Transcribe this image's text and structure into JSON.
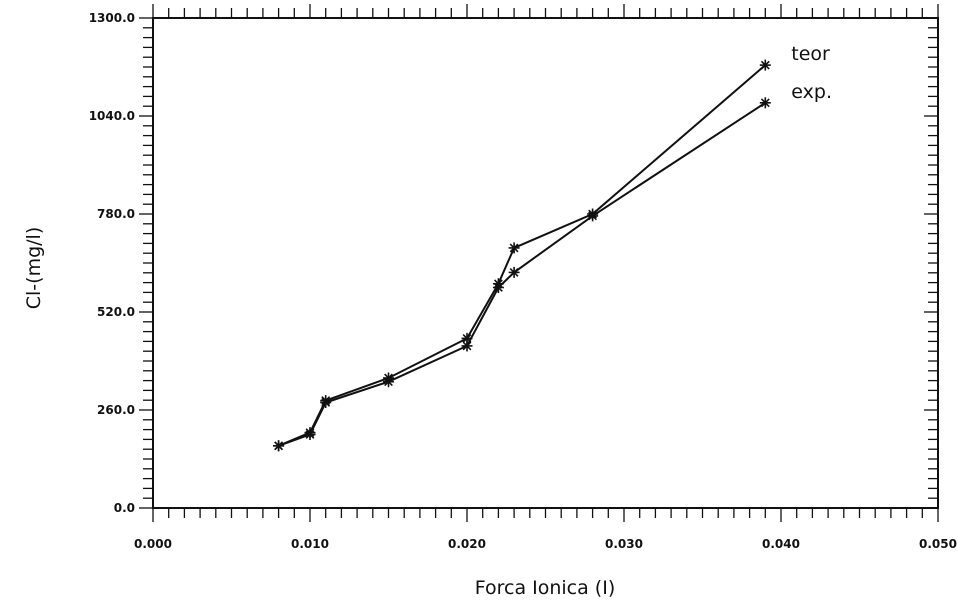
{
  "chart_data": {
    "type": "line",
    "title": "",
    "xlabel": "Forca Ionica (I)",
    "ylabel": "Cl-(mg/l)",
    "xlim": [
      0.0,
      0.05
    ],
    "ylim": [
      0.0,
      1300.0
    ],
    "x_ticks": [
      "0.000",
      "0.010",
      "0.020",
      "0.030",
      "0.040",
      "0.050"
    ],
    "x_tick_values": [
      0.0,
      0.01,
      0.02,
      0.03,
      0.04,
      0.05
    ],
    "y_ticks": [
      "0.0",
      "260.0",
      "520.0",
      "780.0",
      "1040.0",
      "1300.0"
    ],
    "y_tick_values": [
      0,
      260,
      520,
      780,
      1040,
      1300
    ],
    "grid": false,
    "legend_placement": "top-right (labels at line ends)",
    "series": [
      {
        "name": "teor",
        "x": [
          0.008,
          0.01,
          0.011,
          0.015,
          0.02,
          0.022,
          0.023,
          0.028,
          0.039
        ],
        "y": [
          165,
          200,
          285,
          345,
          450,
          595,
          690,
          780,
          1175
        ]
      },
      {
        "name": "exp.",
        "x": [
          0.008,
          0.01,
          0.011,
          0.015,
          0.02,
          0.022,
          0.023,
          0.028,
          0.039
        ],
        "y": [
          165,
          195,
          280,
          335,
          430,
          585,
          625,
          775,
          1075
        ]
      }
    ],
    "colors": {
      "line": "#111111",
      "background": "#ffffff"
    }
  }
}
